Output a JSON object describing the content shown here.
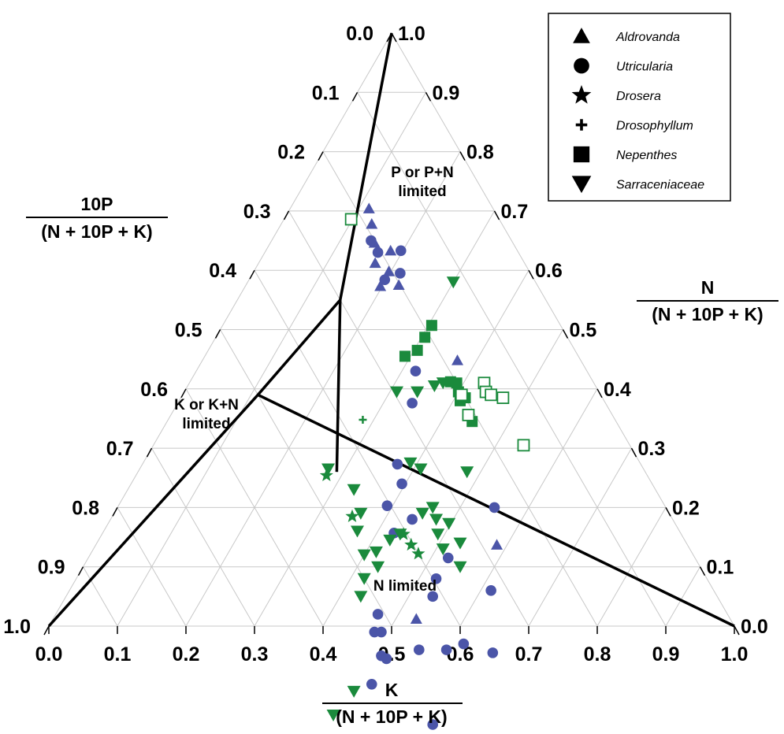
{
  "chart_data": {
    "type": "scatter",
    "subtype": "ternary",
    "title": "",
    "axes": {
      "bottom": {
        "label_numerator": "K",
        "label_denominator": "(N + 10P + K)",
        "ticks": [
          "0.0",
          "0.1",
          "0.2",
          "0.3",
          "0.4",
          "0.5",
          "0.6",
          "0.7",
          "0.8",
          "0.9",
          "1.0"
        ]
      },
      "left": {
        "label_numerator": "10P",
        "label_denominator": "(N + 10P + K)",
        "ticks": [
          "0.0",
          "0.1",
          "0.2",
          "0.3",
          "0.4",
          "0.5",
          "0.6",
          "0.7",
          "0.8",
          "0.9",
          "1.0"
        ]
      },
      "right": {
        "label_numerator": "N",
        "label_denominator": "(N + 10P + K)",
        "ticks": [
          "0.0",
          "0.1",
          "0.2",
          "0.3",
          "0.4",
          "0.5",
          "0.6",
          "0.7",
          "0.8",
          "0.9",
          "1.0"
        ]
      }
    },
    "grid": true,
    "regions": [
      {
        "label_lines": [
          "P or P+N",
          "limited"
        ]
      },
      {
        "label_lines": [
          "K or K+N",
          "limited"
        ]
      },
      {
        "label_lines": [
          "N limited"
        ]
      }
    ],
    "boundaries": [
      {
        "points": [
          [
            0.0,
            1.0
          ],
          [
            0.11,
            0.5
          ],
          [
            0.15,
            0.3
          ]
        ]
      },
      {
        "points": [
          [
            0.0,
            0.0
          ],
          [
            0.15,
            0.3
          ],
          [
            0.29,
            0.45
          ]
        ]
      },
      {
        "points": [
          [
            0.11,
            0.5
          ],
          [
            1.0,
            0.0
          ]
        ]
      }
    ],
    "colors": {
      "blue": "#4b55a8",
      "green": "#1a8a3c",
      "line": "#000000",
      "grid": "#c8c8c8"
    },
    "legend": {
      "position": "top-right",
      "items": [
        {
          "marker": "triangle-up",
          "label": "Aldrovanda"
        },
        {
          "marker": "circle",
          "label": "Utricularia"
        },
        {
          "marker": "star",
          "label": "Drosera"
        },
        {
          "marker": "plus",
          "label": "Drosophyllum"
        },
        {
          "marker": "square",
          "label": "Nepenthes"
        },
        {
          "marker": "triangle-down",
          "label": "Sarraceniaceae"
        }
      ]
    },
    "series": [
      {
        "name": "Aldrovanda",
        "marker": "triangle-up",
        "color": "#4b55a8",
        "filled": true,
        "points": [
          [
            0.115,
            0.181
          ],
          [
            0.132,
            0.19
          ],
          [
            0.152,
            0.202
          ],
          [
            0.17,
            0.218
          ],
          [
            0.197,
            0.23
          ],
          [
            0.223,
            0.202
          ],
          [
            0.182,
            0.185
          ],
          [
            0.372,
            0.18
          ],
          [
            0.455,
            0.155
          ],
          [
            0.53,
            0.458
          ],
          [
            0.585,
            0.278
          ],
          [
            0.197,
            0.205
          ]
        ]
      },
      {
        "name": "Utricularia",
        "marker": "circle",
        "color": "#4b55a8",
        "filled": true,
        "points": [
          [
            0.145,
            0.205
          ],
          [
            0.165,
            0.205
          ],
          [
            0.198,
            0.218
          ],
          [
            0.197,
            0.17
          ],
          [
            0.215,
            0.19
          ],
          [
            0.32,
            0.25
          ],
          [
            0.342,
            0.282
          ],
          [
            0.372,
            0.355
          ],
          [
            0.395,
            0.365
          ],
          [
            0.44,
            0.38
          ],
          [
            0.392,
            0.405
          ],
          [
            0.425,
            0.418
          ],
          [
            0.47,
            0.51
          ],
          [
            0.48,
            0.53
          ],
          [
            0.49,
            0.52
          ],
          [
            0.51,
            0.54
          ],
          [
            0.52,
            0.535
          ],
          [
            0.525,
            0.395
          ],
          [
            0.535,
            0.415
          ],
          [
            0.525,
            0.36
          ],
          [
            0.55,
            0.25
          ],
          [
            0.6,
            0.44
          ],
          [
            0.62,
            0.41
          ],
          [
            0.615,
            0.325
          ],
          [
            0.643,
            0.523
          ],
          [
            0.52,
            0.578
          ],
          [
            0.56,
            0.48
          ],
          [
            0.67,
            0.375
          ]
        ]
      },
      {
        "name": "Drosera",
        "marker": "star",
        "color": "#1a8a3c",
        "filled": true,
        "points": [
          [
            0.278,
            0.468
          ],
          [
            0.35,
            0.465
          ],
          [
            0.44,
            0.405
          ],
          [
            0.46,
            0.403
          ],
          [
            0.478,
            0.4
          ]
        ]
      },
      {
        "name": "Drosophyllum",
        "marker": "plus",
        "color": "#1a8a3c",
        "filled": true,
        "points": [
          [
            0.284,
            0.368
          ]
        ]
      },
      {
        "name": "Nepenthes",
        "marker": "square",
        "color": "#1a8a3c",
        "filled": true,
        "points": [
          [
            0.292,
            0.253
          ],
          [
            0.305,
            0.208
          ],
          [
            0.305,
            0.23
          ],
          [
            0.305,
            0.188
          ],
          [
            0.38,
            0.208
          ],
          [
            0.39,
            0.2
          ],
          [
            0.4,
            0.205
          ],
          [
            0.41,
            0.21
          ],
          [
            0.415,
            0.2
          ],
          [
            0.445,
            0.21
          ]
        ]
      },
      {
        "name": "Nepenthes",
        "marker": "square",
        "color": "#1a8a3c",
        "filled": false,
        "points": [
          [
            0.098,
            0.216
          ],
          [
            0.407,
            0.203
          ],
          [
            0.434,
            0.21
          ],
          [
            0.43,
            0.16
          ],
          [
            0.44,
            0.165
          ],
          [
            0.45,
            0.16
          ],
          [
            0.47,
            0.145
          ],
          [
            0.54,
            0.155
          ]
        ]
      },
      {
        "name": "Sarraceniaceae",
        "marker": "triangle-down",
        "color": "#1a8a3c",
        "filled": true,
        "points": [
          [
            0.3,
            0.12
          ],
          [
            0.31,
            0.295
          ],
          [
            0.34,
            0.265
          ],
          [
            0.36,
            0.235
          ],
          [
            0.37,
            0.22
          ],
          [
            0.48,
            0.26
          ],
          [
            0.39,
            0.335
          ],
          [
            0.41,
            0.325
          ],
          [
            0.45,
            0.36
          ],
          [
            0.46,
            0.34
          ],
          [
            0.475,
            0.345
          ],
          [
            0.49,
            0.355
          ],
          [
            0.497,
            0.33
          ],
          [
            0.51,
            0.36
          ],
          [
            0.53,
            0.33
          ],
          [
            0.55,
            0.35
          ],
          [
            0.275,
            0.46
          ],
          [
            0.33,
            0.44
          ],
          [
            0.36,
            0.45
          ],
          [
            0.37,
            0.47
          ],
          [
            0.4,
            0.48
          ],
          [
            0.415,
            0.46
          ],
          [
            0.425,
            0.43
          ],
          [
            0.435,
            0.41
          ],
          [
            0.42,
            0.5
          ],
          [
            0.43,
            0.52
          ],
          [
            0.49,
            0.66
          ],
          [
            0.5,
            0.61
          ],
          [
            0.43,
            0.47
          ]
        ]
      }
    ]
  }
}
